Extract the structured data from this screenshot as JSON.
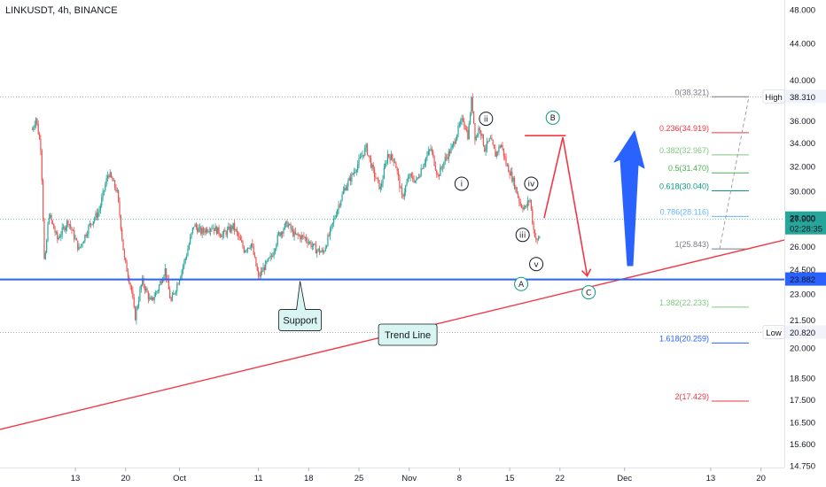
{
  "chart_data": {
    "type": "candlestick",
    "title": "LINKUSDT, 4h, BINANCE",
    "y_axis": {
      "ticks": [
        48.0,
        44.0,
        40.0,
        36.0,
        34.0,
        32.0,
        30.0,
        28.0,
        26.0,
        24.5,
        23.0,
        21.5,
        20.0,
        18.5,
        17.5,
        16.5,
        15.6,
        14.75
      ],
      "tick_labels": [
        "48.000",
        "44.000",
        "40.000",
        "36.000",
        "34.000",
        "32.000",
        "30.000",
        "28.000",
        "26.000",
        "24.500",
        "23.000",
        "21.500",
        "20.000",
        "18.500",
        "17.500",
        "16.500",
        "15.600",
        "14.750"
      ],
      "scale": "log"
    },
    "x_axis": {
      "ticks": [
        {
          "label": "13",
          "day": 13
        },
        {
          "label": "20",
          "day": 20
        },
        {
          "label": "Oct",
          "day": 27.5
        },
        {
          "label": "11",
          "day": 38.5
        },
        {
          "label": "18",
          "day": 45.5
        },
        {
          "label": "25",
          "day": 52.5
        },
        {
          "label": "Nov",
          "day": 59.5
        },
        {
          "label": "8",
          "day": 66.5
        },
        {
          "label": "15",
          "day": 73.5
        },
        {
          "label": "22",
          "day": 80.5
        },
        {
          "label": "Dec",
          "day": 89.5
        },
        {
          "label": "13",
          "day": 101.5
        },
        {
          "label": "20",
          "day": 108.5
        }
      ]
    },
    "price_path": [
      [
        7.0,
        35.2
      ],
      [
        7.5,
        36.3
      ],
      [
        8.2,
        33.5
      ],
      [
        8.7,
        24.5
      ],
      [
        9.3,
        28.3
      ],
      [
        10.5,
        26.5
      ],
      [
        12.0,
        27.8
      ],
      [
        13.5,
        25.8
      ],
      [
        15.0,
        27.5
      ],
      [
        16.3,
        28.5
      ],
      [
        17.6,
        31.5
      ],
      [
        18.8,
        30.0
      ],
      [
        19.8,
        25.2
      ],
      [
        20.8,
        23.3
      ],
      [
        21.3,
        21.6
      ],
      [
        22.3,
        23.8
      ],
      [
        23.5,
        22.5
      ],
      [
        24.5,
        23.3
      ],
      [
        25.5,
        24.5
      ],
      [
        26.3,
        22.5
      ],
      [
        27.5,
        24.0
      ],
      [
        28.5,
        25.5
      ],
      [
        29.5,
        27.5
      ],
      [
        30.5,
        27.0
      ],
      [
        32.0,
        27.4
      ],
      [
        33.5,
        26.8
      ],
      [
        35.0,
        27.4
      ],
      [
        36.5,
        25.8
      ],
      [
        37.5,
        26.2
      ],
      [
        38.5,
        24.0
      ],
      [
        39.5,
        24.8
      ],
      [
        40.3,
        25.3
      ],
      [
        41.3,
        26.8
      ],
      [
        42.5,
        27.6
      ],
      [
        43.5,
        26.8
      ],
      [
        45.0,
        26.6
      ],
      [
        46.5,
        25.8
      ],
      [
        47.5,
        25.6
      ],
      [
        48.5,
        27.0
      ],
      [
        49.5,
        28.7
      ],
      [
        50.5,
        30.2
      ],
      [
        51.5,
        31.2
      ],
      [
        52.5,
        32.4
      ],
      [
        53.5,
        33.6
      ],
      [
        54.5,
        31.5
      ],
      [
        55.5,
        30.2
      ],
      [
        56.5,
        33.0
      ],
      [
        57.5,
        32.5
      ],
      [
        58.5,
        29.5
      ],
      [
        59.5,
        31.2
      ],
      [
        60.5,
        30.8
      ],
      [
        61.5,
        32.3
      ],
      [
        62.5,
        33.5
      ],
      [
        63.5,
        31.2
      ],
      [
        64.5,
        32.6
      ],
      [
        65.5,
        33.6
      ],
      [
        66.3,
        35.2
      ],
      [
        67.0,
        36.2
      ],
      [
        67.7,
        34.6
      ],
      [
        68.2,
        38.2
      ],
      [
        68.7,
        34.3
      ],
      [
        69.3,
        35.5
      ],
      [
        70.0,
        33.5
      ],
      [
        70.8,
        34.3
      ],
      [
        71.5,
        33.0
      ],
      [
        72.3,
        33.9
      ],
      [
        73.0,
        32.2
      ],
      [
        73.7,
        31.3
      ],
      [
        74.3,
        30.3
      ],
      [
        75.0,
        29.0
      ],
      [
        75.7,
        28.7
      ],
      [
        76.3,
        29.5
      ],
      [
        76.8,
        27.2
      ],
      [
        77.3,
        26.3
      ],
      [
        77.8,
        26.9
      ]
    ],
    "horizontal_levels": [
      {
        "name": "High",
        "value": 38.31,
        "label": "38.310"
      },
      {
        "name": "Low",
        "value": 20.82,
        "label": "20.820"
      },
      {
        "name": "Support",
        "value": 23.882,
        "label": "23.882"
      }
    ],
    "current_price": {
      "label": "27.900",
      "countdown": "02:28:35",
      "value": 27.9
    },
    "fibonacci": [
      {
        "label": "0(38.321)",
        "value": 38.321,
        "color": "#787b86"
      },
      {
        "label": "0.236(34.919)",
        "value": 34.919,
        "color": "#f23645"
      },
      {
        "label": "0.382(32.967)",
        "value": 32.967,
        "color": "#81c784"
      },
      {
        "label": "0.5(31.470)",
        "value": 31.47,
        "color": "#4caf50"
      },
      {
        "label": "0.618(30.040)",
        "value": 30.04,
        "color": "#089981"
      },
      {
        "label": "0.786(28.116)",
        "value": 28.116,
        "color": "#64b5f6"
      },
      {
        "label": "1(25.843)",
        "value": 25.843,
        "color": "#787b86"
      },
      {
        "label": "1.382(22.233)",
        "value": 22.233,
        "color": "#81c784"
      },
      {
        "label": "1.618(20.259)",
        "value": 20.259,
        "color": "#2962ff"
      },
      {
        "label": "2(17.429)",
        "value": 17.429,
        "color": "#f23645"
      }
    ],
    "waves": [
      {
        "label": "ii",
        "day": 70.2,
        "price": 36.2
      },
      {
        "label": "i",
        "day": 66.8,
        "price": 30.6
      },
      {
        "label": "iv",
        "day": 76.5,
        "price": 30.6
      },
      {
        "label": "iii",
        "day": 75.3,
        "price": 26.8
      },
      {
        "label": "v",
        "day": 77.2,
        "price": 24.85
      },
      {
        "label": "A",
        "day": 75.1,
        "price": 23.6,
        "color": "#089981"
      },
      {
        "label": "B",
        "day": 79.5,
        "price": 36.3,
        "color": "#089981"
      },
      {
        "label": "C",
        "day": 84.5,
        "price": 23.1,
        "color": "#089981"
      }
    ],
    "projection_path": [
      [
        78.3,
        28.0
      ],
      [
        80.9,
        34.5
      ],
      [
        84.3,
        24.1
      ]
    ],
    "projection_line": {
      "from": [
        75.6,
        34.65
      ],
      "to": [
        81.3,
        34.65
      ]
    },
    "trend_line": {
      "from": [
        0,
        16.26
      ],
      "to": [
        112,
        26.3
      ]
    },
    "callouts": [
      {
        "label": "Support",
        "day": 44.3,
        "price": 21.5
      },
      {
        "label": "Trend Line",
        "day": 59.3,
        "price": 20.7
      }
    ]
  }
}
